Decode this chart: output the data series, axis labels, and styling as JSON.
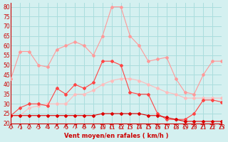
{
  "x": [
    0,
    1,
    2,
    3,
    4,
    5,
    6,
    7,
    8,
    9,
    10,
    11,
    12,
    13,
    14,
    15,
    16,
    17,
    18,
    19,
    20,
    21,
    22,
    23
  ],
  "line1": [
    43,
    57,
    57,
    50,
    49,
    58,
    60,
    62,
    60,
    55,
    65,
    80,
    80,
    65,
    60,
    52,
    53,
    54,
    43,
    36,
    35,
    45,
    52,
    52
  ],
  "line2": [
    24,
    28,
    30,
    30,
    29,
    38,
    35,
    40,
    38,
    41,
    52,
    52,
    50,
    36,
    35,
    35,
    25,
    22,
    22,
    22,
    25,
    32,
    32,
    31
  ],
  "line3": [
    24,
    24,
    28,
    29,
    30,
    30,
    30,
    35,
    35,
    37,
    40,
    42,
    43,
    43,
    42,
    40,
    38,
    36,
    35,
    33,
    33,
    33,
    33,
    33
  ],
  "line4": [
    24,
    24,
    24,
    24,
    24,
    24,
    24,
    24,
    24,
    24,
    25,
    25,
    25,
    25,
    25,
    24,
    24,
    23,
    22,
    21,
    21,
    21,
    21,
    21
  ],
  "line1_color": "#ff9999",
  "line2_color": "#ff4444",
  "line3_color": "#ffbbbb",
  "line4_color": "#dd0000",
  "bg_color": "#d4f0f0",
  "grid_color": "#aadddd",
  "xlabel": "Vent moyen/en rafales ( km/h )",
  "ylabel": "",
  "ylim": [
    20,
    82
  ],
  "xlim": [
    0,
    23
  ],
  "yticks": [
    20,
    25,
    30,
    35,
    40,
    45,
    50,
    55,
    60,
    65,
    70,
    75,
    80
  ],
  "xticks": [
    0,
    1,
    2,
    3,
    4,
    5,
    6,
    7,
    8,
    9,
    10,
    11,
    12,
    13,
    14,
    15,
    16,
    17,
    18,
    19,
    20,
    21,
    22,
    23
  ]
}
